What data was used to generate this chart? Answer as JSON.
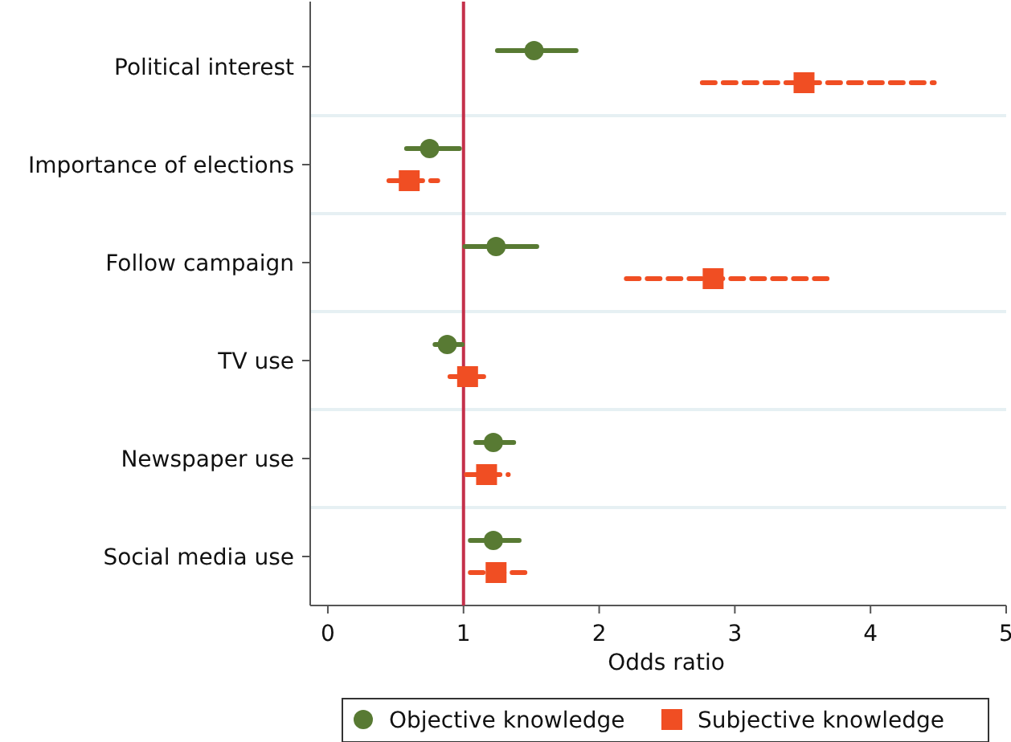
{
  "chart_data": {
    "type": "scatter",
    "orientation": "horizontal",
    "xlabel": "Odds ratio",
    "categories": [
      "Political interest",
      "Importance of elections",
      "Follow campaign",
      "TV use",
      "Newspaper use",
      "Social media use"
    ],
    "series": [
      {
        "name": "Objective knowledge",
        "color": "#587a33",
        "marker": "circle",
        "line_style": "solid",
        "values": [
          1.52,
          0.75,
          1.24,
          0.88,
          1.22,
          1.22
        ],
        "errors": [
          [
            1.25,
            1.83
          ],
          [
            0.58,
            0.97
          ],
          [
            1.01,
            1.54
          ],
          [
            0.79,
            0.99
          ],
          [
            1.09,
            1.37
          ],
          [
            1.05,
            1.41
          ]
        ]
      },
      {
        "name": "Subjective knowledge",
        "color": "#f04e23",
        "marker": "square",
        "line_style": "dashed",
        "values": [
          3.51,
          0.6,
          2.84,
          1.03,
          1.17,
          1.24
        ],
        "errors": [
          [
            2.76,
            4.47
          ],
          [
            0.45,
            0.81
          ],
          [
            2.2,
            3.68
          ],
          [
            0.9,
            1.18
          ],
          [
            1.02,
            1.33
          ],
          [
            1.05,
            1.47
          ]
        ]
      }
    ],
    "xlim": [
      -0.13,
      5
    ],
    "xticks": [
      0,
      1,
      2,
      3,
      4,
      5
    ],
    "ref_lines": [
      {
        "axis": "x",
        "value": 1,
        "color": "#c4304a"
      }
    ],
    "grid": "y",
    "legend": "bottom"
  }
}
